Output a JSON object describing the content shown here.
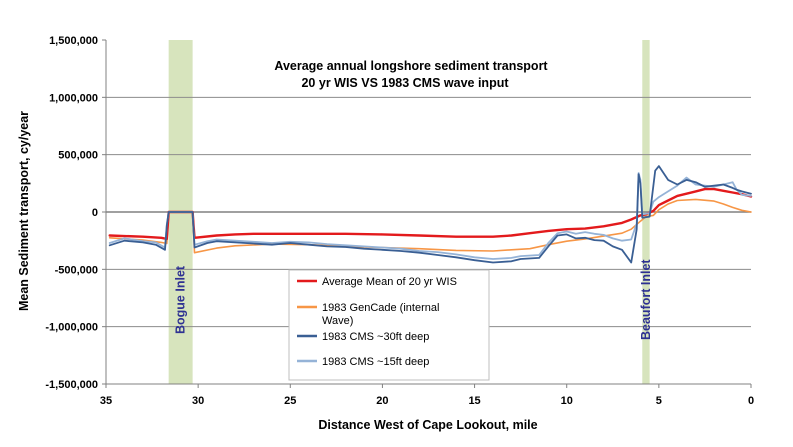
{
  "chart_data": {
    "type": "line",
    "title": [
      "Average annual longshore  sediment transport",
      "20 yr WIS VS 1983 CMS wave input"
    ],
    "xlabel": "Distance West of Cape Lookout, mile",
    "ylabel": "Mean Sediment transport, cy/year",
    "xlim": [
      35,
      0
    ],
    "ylim": [
      -1500000,
      1500000
    ],
    "x_reversed": true,
    "grid": true,
    "legend_position": "bottom-center",
    "x_ticks": [
      35,
      30,
      25,
      20,
      15,
      10,
      5,
      0
    ],
    "x_tick_labels": [
      "35",
      "30",
      "25",
      "20",
      "15",
      "10",
      "5",
      "0"
    ],
    "y_ticks": [
      1500000,
      1000000,
      500000,
      0,
      -500000,
      -1000000,
      -1500000
    ],
    "y_tick_labels": [
      "1,500,000",
      "1,000,000",
      "500,000",
      "0",
      "-500,000",
      "-1,000,000",
      "-1,500,000"
    ],
    "bands": [
      {
        "label": "Bogue Inlet",
        "x_from": 31.6,
        "x_to": 30.3,
        "color": "#d7e4bd"
      },
      {
        "label": "Beaufort Inlet",
        "x_from": 5.9,
        "x_to": 5.5,
        "color": "#d7e4bd"
      }
    ],
    "series": [
      {
        "name": "Average Mean of 20 yr WIS",
        "color": "#e31a1c",
        "width": 2.4,
        "points": [
          [
            34.8,
            -205000
          ],
          [
            33,
            -215000
          ],
          [
            32,
            -225000
          ],
          [
            31.7,
            -235000
          ],
          [
            31.6,
            0
          ],
          [
            30.3,
            0
          ],
          [
            30.2,
            -225000
          ],
          [
            29,
            -205000
          ],
          [
            28,
            -195000
          ],
          [
            27,
            -190000
          ],
          [
            25,
            -190000
          ],
          [
            22,
            -190000
          ],
          [
            20,
            -195000
          ],
          [
            18,
            -205000
          ],
          [
            16,
            -215000
          ],
          [
            15,
            -215000
          ],
          [
            14,
            -215000
          ],
          [
            13,
            -205000
          ],
          [
            12,
            -185000
          ],
          [
            11,
            -165000
          ],
          [
            10,
            -150000
          ],
          [
            9,
            -145000
          ],
          [
            8,
            -125000
          ],
          [
            7,
            -95000
          ],
          [
            6.5,
            -65000
          ],
          [
            6,
            -30000
          ],
          [
            5.7,
            -20000
          ],
          [
            5.3,
            10000
          ],
          [
            5,
            60000
          ],
          [
            4.5,
            100000
          ],
          [
            4,
            140000
          ],
          [
            3,
            180000
          ],
          [
            2.5,
            200000
          ],
          [
            2,
            200000
          ],
          [
            1.5,
            185000
          ],
          [
            1,
            170000
          ],
          [
            0.5,
            155000
          ],
          [
            0,
            135000
          ]
        ]
      },
      {
        "name": "1983 GenCade (internal Wave)",
        "color": "#f79646",
        "width": 1.6,
        "points": [
          [
            34.8,
            -225000
          ],
          [
            33,
            -245000
          ],
          [
            32,
            -265000
          ],
          [
            31.7,
            -275000
          ],
          [
            31.6,
            0
          ],
          [
            30.3,
            0
          ],
          [
            30.2,
            -355000
          ],
          [
            29,
            -315000
          ],
          [
            28,
            -295000
          ],
          [
            26,
            -280000
          ],
          [
            24,
            -285000
          ],
          [
            22,
            -300000
          ],
          [
            20,
            -310000
          ],
          [
            18,
            -320000
          ],
          [
            16,
            -335000
          ],
          [
            14,
            -340000
          ],
          [
            13,
            -330000
          ],
          [
            12,
            -320000
          ],
          [
            11,
            -285000
          ],
          [
            10,
            -255000
          ],
          [
            9,
            -235000
          ],
          [
            8,
            -210000
          ],
          [
            7,
            -185000
          ],
          [
            6.5,
            -150000
          ],
          [
            6,
            -80000
          ],
          [
            5.7,
            -40000
          ],
          [
            5.3,
            -30000
          ],
          [
            5,
            20000
          ],
          [
            4.5,
            70000
          ],
          [
            4,
            100000
          ],
          [
            3,
            110000
          ],
          [
            2,
            95000
          ],
          [
            1.5,
            70000
          ],
          [
            1,
            40000
          ],
          [
            0.5,
            15000
          ],
          [
            0,
            0
          ]
        ]
      },
      {
        "name": "1983 CMS ~30ft deep",
        "color": "#3a5f94",
        "width": 1.8,
        "points": [
          [
            34.8,
            -290000
          ],
          [
            34,
            -250000
          ],
          [
            33,
            -265000
          ],
          [
            32.3,
            -285000
          ],
          [
            31.8,
            -330000
          ],
          [
            31.7,
            -120000
          ],
          [
            31.6,
            0
          ],
          [
            30.3,
            0
          ],
          [
            30.2,
            -310000
          ],
          [
            29.5,
            -270000
          ],
          [
            29,
            -255000
          ],
          [
            28,
            -265000
          ],
          [
            27,
            -275000
          ],
          [
            26,
            -285000
          ],
          [
            25,
            -270000
          ],
          [
            24,
            -285000
          ],
          [
            23,
            -300000
          ],
          [
            22,
            -305000
          ],
          [
            21,
            -320000
          ],
          [
            20,
            -330000
          ],
          [
            19,
            -340000
          ],
          [
            18,
            -355000
          ],
          [
            17,
            -375000
          ],
          [
            16,
            -395000
          ],
          [
            15,
            -420000
          ],
          [
            14,
            -440000
          ],
          [
            13,
            -430000
          ],
          [
            12.5,
            -410000
          ],
          [
            11.5,
            -400000
          ],
          [
            11,
            -300000
          ],
          [
            10.5,
            -205000
          ],
          [
            10,
            -195000
          ],
          [
            9.5,
            -230000
          ],
          [
            9,
            -225000
          ],
          [
            8.5,
            -245000
          ],
          [
            8,
            -250000
          ],
          [
            7.5,
            -300000
          ],
          [
            7,
            -330000
          ],
          [
            6.5,
            -440000
          ],
          [
            6.2,
            -150000
          ],
          [
            6.1,
            330000
          ],
          [
            6,
            250000
          ],
          [
            5.9,
            -50000
          ],
          [
            5.5,
            -40000
          ],
          [
            5.2,
            360000
          ],
          [
            5,
            400000
          ],
          [
            4.5,
            280000
          ],
          [
            4,
            240000
          ],
          [
            3.5,
            280000
          ],
          [
            3,
            260000
          ],
          [
            2.5,
            220000
          ],
          [
            2,
            230000
          ],
          [
            1.5,
            240000
          ],
          [
            1,
            210000
          ],
          [
            0.8,
            195000
          ],
          [
            0.5,
            180000
          ],
          [
            0,
            160000
          ]
        ]
      },
      {
        "name": "1983 CMS ~15ft deep",
        "color": "#95b3d7",
        "width": 1.8,
        "points": [
          [
            34.8,
            -270000
          ],
          [
            34,
            -230000
          ],
          [
            33,
            -255000
          ],
          [
            32.3,
            -265000
          ],
          [
            31.8,
            -310000
          ],
          [
            31.7,
            -110000
          ],
          [
            31.6,
            0
          ],
          [
            30.3,
            0
          ],
          [
            30.2,
            -285000
          ],
          [
            29.5,
            -255000
          ],
          [
            29,
            -240000
          ],
          [
            28,
            -250000
          ],
          [
            27,
            -260000
          ],
          [
            26,
            -270000
          ],
          [
            25,
            -260000
          ],
          [
            24,
            -265000
          ],
          [
            23,
            -280000
          ],
          [
            22,
            -290000
          ],
          [
            21,
            -300000
          ],
          [
            20,
            -310000
          ],
          [
            19,
            -320000
          ],
          [
            18,
            -340000
          ],
          [
            17,
            -350000
          ],
          [
            16,
            -370000
          ],
          [
            15,
            -395000
          ],
          [
            14,
            -410000
          ],
          [
            13,
            -400000
          ],
          [
            12.5,
            -385000
          ],
          [
            11.5,
            -375000
          ],
          [
            11,
            -270000
          ],
          [
            10.5,
            -185000
          ],
          [
            10,
            -170000
          ],
          [
            9.5,
            -190000
          ],
          [
            9,
            -175000
          ],
          [
            8.5,
            -190000
          ],
          [
            8,
            -200000
          ],
          [
            7.5,
            -230000
          ],
          [
            7,
            -250000
          ],
          [
            6.5,
            -240000
          ],
          [
            6.2,
            -100000
          ],
          [
            6.1,
            340000
          ],
          [
            6,
            280000
          ],
          [
            5.9,
            -20000
          ],
          [
            5.5,
            -10000
          ],
          [
            5.3,
            90000
          ],
          [
            5,
            130000
          ],
          [
            4.5,
            180000
          ],
          [
            4,
            230000
          ],
          [
            3.5,
            300000
          ],
          [
            3,
            240000
          ],
          [
            2.5,
            230000
          ],
          [
            2,
            220000
          ],
          [
            1.5,
            240000
          ],
          [
            1,
            260000
          ],
          [
            0.8,
            200000
          ],
          [
            0.5,
            150000
          ],
          [
            0,
            140000
          ]
        ]
      }
    ]
  }
}
